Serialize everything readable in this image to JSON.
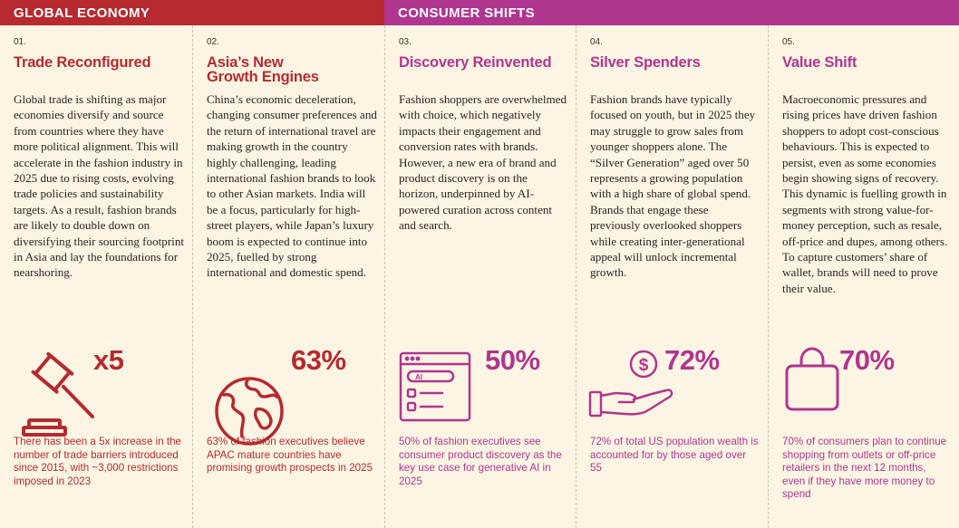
{
  "headers": {
    "left": "GLOBAL ECONOMY",
    "right": "CONSUMER SHIFTS"
  },
  "colors": {
    "red": "#b62a30",
    "purple": "#b0368f",
    "background": "#fdf5e4"
  },
  "columns": [
    {
      "number": "01.",
      "title": "Trade Reconfigured",
      "body": "Global trade is shifting as major economies diversify and source from countries where they have more political alignment. This will accelerate in the fashion industry in 2025 due to rising costs, evolving trade policies and sustainability targets. As a result, fashion brands are likely to double down on diversifying their sourcing footprint in Asia and lay the foundations for nearshoring.",
      "stat": "x5",
      "icon": "gavel-icon",
      "caption": "There has been a 5x increase in the number of trade barriers introduced since 2015, with ~3,000 restrictions imposed in 2023"
    },
    {
      "number": "02.",
      "title": "Asia’s New Growth Engines",
      "body": "China’s economic deceleration, changing consumer preferences and the return of international travel are making growth in the country highly challenging, leading international fashion brands to look to other Asian markets. India will be a focus, particularly for high-street players, while Japan’s luxury boom is expected to continue into 2025, fuelled by strong international and domestic spend.",
      "stat": "63%",
      "icon": "globe-icon",
      "caption": "63% of fashion executives believe APAC mature countries have promising growth prospects in 2025"
    },
    {
      "number": "03.",
      "title": "Discovery Reinvented",
      "body": "Fashion shoppers are overwhelmed with choice, which negatively impacts their engagement and conversion rates with brands. However, a new era of brand and product discovery is on the horizon, underpinned by AI-powered curation across content and search.",
      "stat": "50%",
      "icon": "ai-search-window-icon",
      "icon_text": "AI",
      "caption": "50% of fashion executives see consumer product discovery as the key use case for generative AI in 2025"
    },
    {
      "number": "04.",
      "title": "Silver Spenders",
      "body": "Fashion brands have typically focused on youth, but in 2025 they may struggle to grow sales from younger shoppers alone. The “Silver Generation” aged over 50 represents a growing population with a high share of global spend. Brands that engage these previously overlooked shoppers while creating inter-generational appeal will unlock incremental growth.",
      "stat": "72%",
      "icon": "hand-coin-icon",
      "caption": "72% of total US population wealth is accounted for by those aged over 55"
    },
    {
      "number": "05.",
      "title": "Value Shift",
      "body": "Macroeconomic pressures and rising prices have driven fashion shoppers to adopt cost-conscious behaviours. This is expected to persist, even as some economies begin showing signs of recovery. This dynamic is fuelling growth in segments with strong value-for-money perception, such as resale, off-price and dupes, among others. To capture customers’ share of wallet, brands will need to prove their value.",
      "stat": "70%",
      "icon": "shopping-bag-icon",
      "caption": "70% of consumers plan to continue shopping from outlets or off-price retailers in the next 12 months, even if they have more money to spend"
    }
  ]
}
